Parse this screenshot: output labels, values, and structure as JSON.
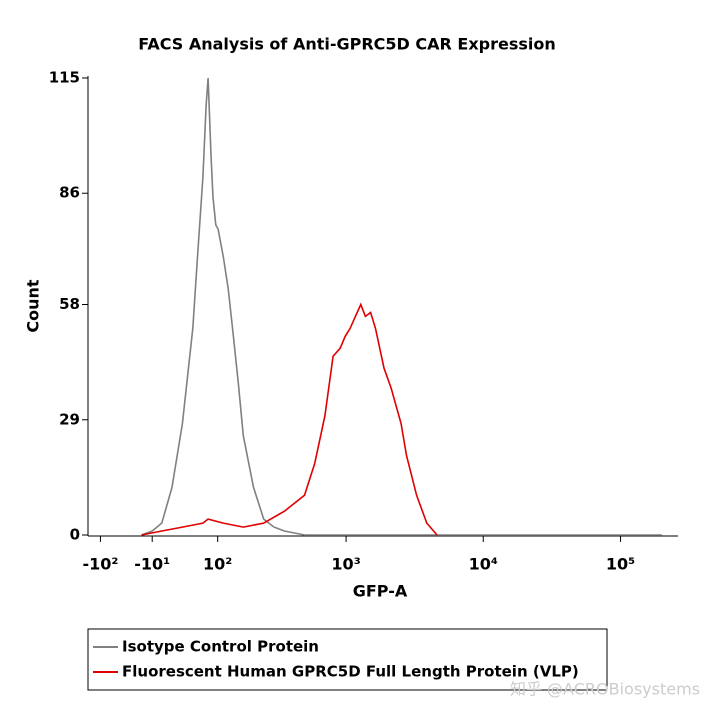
{
  "chart_data": {
    "type": "line",
    "title": "FACS Analysis of Anti-GPRC5D CAR Expression",
    "x_label": "GFP-A",
    "y_label": "Count",
    "xscale": "asinh",
    "xlim": [
      -130,
      262144
    ],
    "xticks": [
      {
        "value": -100,
        "label": "-10²"
      },
      {
        "value": -10,
        "label": "-10¹"
      },
      {
        "value": 100,
        "label": "10²"
      },
      {
        "value": 1000,
        "label": "10³"
      },
      {
        "value": 10000,
        "label": "10⁴"
      },
      {
        "value": 100000,
        "label": "10⁵"
      }
    ],
    "ylim": [
      0,
      115
    ],
    "yticks": [
      0,
      29,
      58,
      86,
      115
    ],
    "legend": "bottom",
    "series": [
      {
        "name": "Isotype Control Protein",
        "color": "#808080",
        "x": [
          -26,
          -10,
          4,
          19,
          35,
          52,
          60,
          70,
          76,
          80,
          86,
          90,
          96,
          101,
          113,
          125,
          139,
          153,
          168,
          203,
          244,
          293,
          351,
          495,
          1000,
          10000,
          200000
        ],
        "values": [
          0,
          1,
          3,
          12,
          28,
          52,
          70,
          90,
          108,
          115,
          95,
          85,
          78,
          77,
          70,
          62,
          50,
          38,
          25,
          12,
          4,
          2,
          1,
          0,
          0,
          0,
          0
        ]
      },
      {
        "name": "Fluorescent Human GPRC5D Full Length Protein (VLP)",
        "color": "#e00000",
        "x": [
          -26,
          4,
          35,
          70,
          80,
          113,
          168,
          244,
          351,
          495,
          589,
          700,
          804,
          906,
          985,
          1070,
          1170,
          1280,
          1385,
          1510,
          1640,
          1890,
          2130,
          2520,
          2760,
          3270,
          3880,
          4600
        ],
        "values": [
          0,
          1,
          2,
          3,
          4,
          3,
          2,
          3,
          6,
          10,
          18,
          30,
          45,
          47,
          50,
          52,
          55,
          58,
          55,
          56,
          52,
          42,
          37,
          28,
          20,
          10,
          3,
          0
        ]
      }
    ],
    "watermark": "知乎 @ACROBiosystems"
  }
}
